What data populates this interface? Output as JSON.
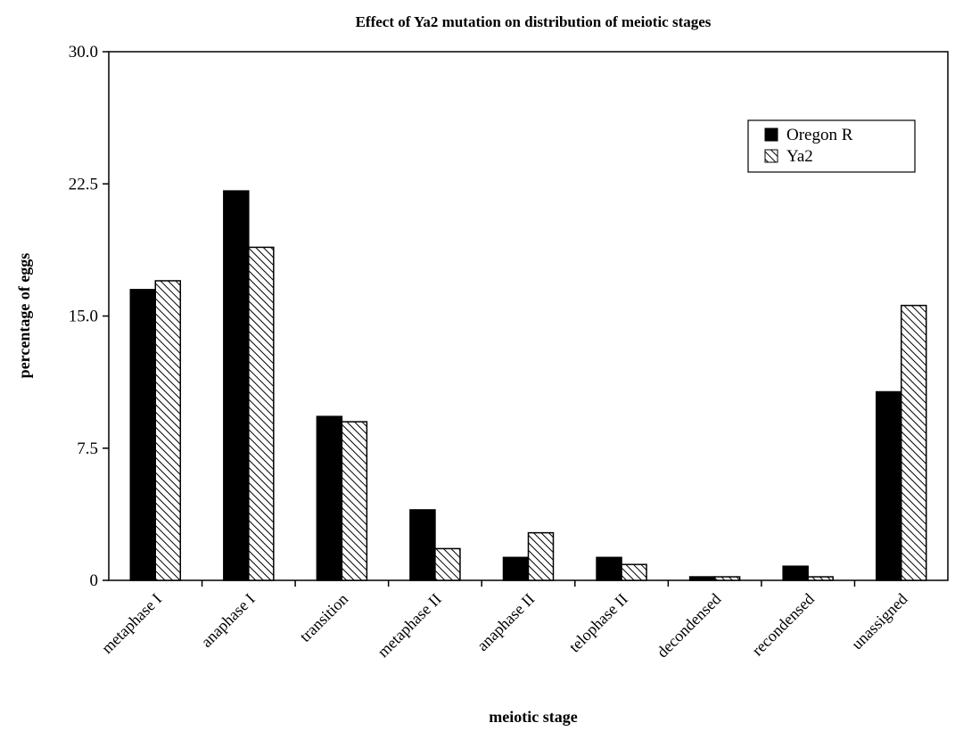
{
  "chart_data": {
    "type": "bar",
    "title": "Effect of Ya2 mutation on distribution of meiotic stages",
    "xlabel": "meiotic stage",
    "ylabel": "percentage of eggs",
    "ylim": [
      0,
      30
    ],
    "yticks": [
      "0",
      "7.5",
      "15.0",
      "22.5",
      "30.0"
    ],
    "ytick_values": [
      0,
      7.5,
      15,
      22.5,
      30
    ],
    "grid": false,
    "legend_position": "top-right",
    "categories": [
      "metaphase I",
      "anaphase I",
      "transition",
      "metaphase II",
      "anaphase II",
      "telophase II",
      "decondensed",
      "recondensed",
      "unassigned"
    ],
    "series": [
      {
        "name": "Oregon R",
        "fill": "solid",
        "color": "#000000",
        "values": [
          16.5,
          22.1,
          9.3,
          4.0,
          1.3,
          1.3,
          0.2,
          0.8,
          10.7
        ]
      },
      {
        "name": "Ya2",
        "fill": "hatched",
        "color": "#000000",
        "values": [
          17.0,
          18.9,
          9.0,
          1.8,
          2.7,
          0.9,
          0.2,
          0.2,
          15.6
        ]
      }
    ]
  }
}
